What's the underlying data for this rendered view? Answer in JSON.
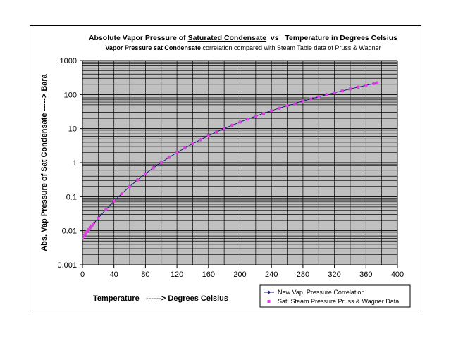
{
  "chart_data": {
    "type": "scatter",
    "title": "Absolute Vapor Pressure of Saturated Condensate  vs   Temperature in Degrees Celsius",
    "title_parts": [
      "Absolute Vapor Pressure of ",
      "Saturated Condensate",
      "  vs   Temperature in Degrees Celsius"
    ],
    "subtitle_bold": "Vapor Pressure sat Condensate",
    "subtitle_rest": " correlation compared with Steam Table data of Pruss & Wagner",
    "xlabel": "Temperature   ------> Degrees Celsius",
    "ylabel": "Abs. Vap Pressure of Sat Condensate -----> Bara",
    "xlim": [
      0,
      400
    ],
    "ylim": [
      0.001,
      1000
    ],
    "yscale": "log",
    "grid": true,
    "legend_position": "bottom-right",
    "x_ticks": [
      "0",
      "40",
      "80",
      "120",
      "160",
      "200",
      "240",
      "280",
      "320",
      "360",
      "400"
    ],
    "y_ticks": [
      "0.001",
      "0.01",
      "0.1",
      "1",
      "10",
      "100",
      "1000"
    ],
    "series": [
      {
        "name": "New Vap. Pressure Correlation",
        "color": "#1a1a7a",
        "marker": "diamond",
        "line": true,
        "x": [
          0.01,
          2,
          4,
          6,
          8,
          10,
          12,
          14,
          20,
          30,
          40,
          50,
          60,
          70,
          80,
          90,
          100,
          110,
          120,
          130,
          140,
          150,
          160,
          170,
          180,
          190,
          200,
          210,
          220,
          230,
          240,
          250,
          260,
          270,
          280,
          290,
          300,
          310,
          320,
          330,
          340,
          350,
          360,
          370,
          374
        ],
        "y": [
          0.0061,
          0.0071,
          0.0081,
          0.0094,
          0.0107,
          0.0123,
          0.014,
          0.016,
          0.0234,
          0.0425,
          0.0738,
          0.123,
          0.199,
          0.312,
          0.474,
          0.702,
          1.013,
          1.434,
          1.987,
          2.703,
          3.615,
          4.76,
          6.18,
          7.92,
          10.03,
          12.55,
          15.55,
          19.08,
          23.2,
          27.98,
          33.47,
          39.76,
          46.92,
          55.03,
          64.17,
          74.42,
          85.88,
          98.65,
          112.8,
          128.6,
          146.0,
          165.2,
          186.6,
          210.4,
          220.6
        ]
      },
      {
        "name": "Sat. Steam Pressure Pruss & Wagner Data",
        "color": "#e040e0",
        "marker": "square",
        "line": false,
        "x": [
          0.01,
          2,
          4,
          6,
          8,
          10,
          12,
          14,
          20,
          30,
          40,
          50,
          60,
          70,
          80,
          90,
          100,
          110,
          120,
          130,
          140,
          150,
          160,
          170,
          180,
          190,
          200,
          210,
          220,
          230,
          240,
          250,
          260,
          270,
          280,
          290,
          300,
          310,
          320,
          330,
          340,
          350,
          360,
          370,
          374
        ],
        "y": [
          0.0061,
          0.0071,
          0.0081,
          0.0094,
          0.0107,
          0.0123,
          0.014,
          0.016,
          0.0234,
          0.0425,
          0.0738,
          0.123,
          0.199,
          0.312,
          0.474,
          0.702,
          1.013,
          1.434,
          1.987,
          2.703,
          3.615,
          4.76,
          6.18,
          7.92,
          10.03,
          12.55,
          15.55,
          19.08,
          23.2,
          27.98,
          33.47,
          39.76,
          46.92,
          55.03,
          64.17,
          74.42,
          85.88,
          98.65,
          112.8,
          128.6,
          146.0,
          165.2,
          186.6,
          210.4,
          220.6
        ]
      }
    ]
  }
}
